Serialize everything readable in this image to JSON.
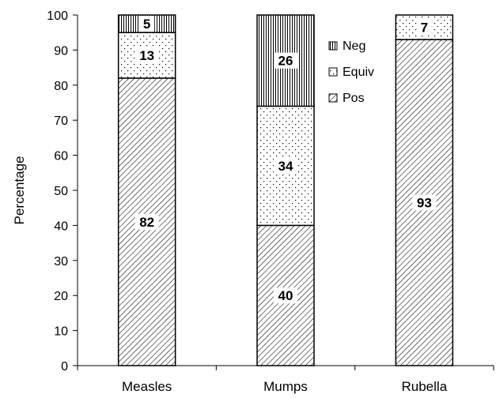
{
  "chart_data": {
    "type": "bar",
    "stacked": true,
    "categories": [
      "Measles",
      "Mumps",
      "Rubella"
    ],
    "series": [
      {
        "name": "Pos",
        "values": [
          82,
          40,
          93
        ],
        "pattern": "diagonal-hatch"
      },
      {
        "name": "Equiv",
        "values": [
          13,
          34,
          7
        ],
        "pattern": "dots"
      },
      {
        "name": "Neg",
        "values": [
          5,
          26,
          0
        ],
        "pattern": "vertical-lines"
      }
    ],
    "data_labels": [
      [
        "82",
        "40",
        "93"
      ],
      [
        "13",
        "34",
        "7"
      ],
      [
        "5",
        "26",
        ""
      ]
    ],
    "ylabel": "Percentage",
    "ylim": [
      0,
      100
    ],
    "yticks": [
      0,
      10,
      20,
      30,
      40,
      50,
      60,
      70,
      80,
      90,
      100
    ],
    "grid": false,
    "legend_position": "top-right",
    "legend_order": [
      "Neg",
      "Equiv",
      "Pos"
    ],
    "colors": {
      "ink": "#000000",
      "background": "#ffffff"
    }
  }
}
